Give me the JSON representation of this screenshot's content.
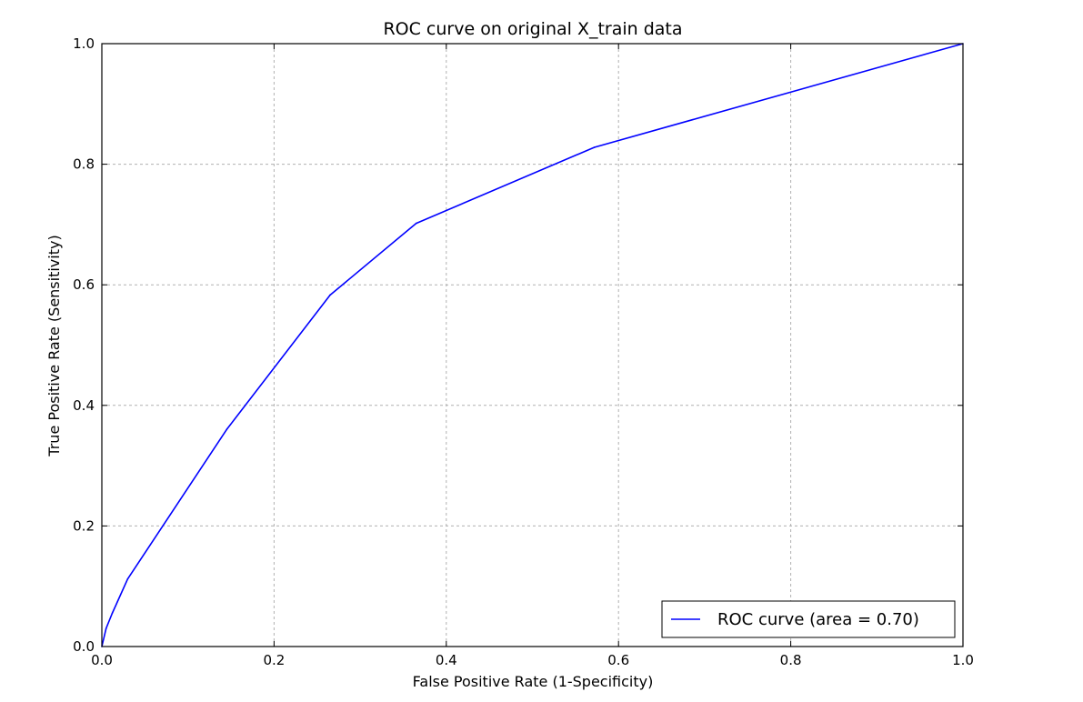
{
  "chart_data": {
    "type": "line",
    "title": "ROC curve on original X_train data",
    "xlabel": "False Positive Rate (1-Specificity)",
    "ylabel": "True Positive Rate (Sensitivity)",
    "xlim": [
      0.0,
      1.0
    ],
    "ylim": [
      0.0,
      1.0
    ],
    "xticks": [
      "0.0",
      "0.2",
      "0.4",
      "0.6",
      "0.8",
      "1.0"
    ],
    "yticks": [
      "0.0",
      "0.2",
      "0.4",
      "0.6",
      "0.8",
      "1.0"
    ],
    "grid": true,
    "legend_position": "lower-right",
    "series": [
      {
        "name": "ROC curve (area = 0.70)",
        "color": "#0000ff",
        "x": [
          0.0,
          0.005,
          0.012,
          0.03,
          0.145,
          0.265,
          0.365,
          0.572,
          1.0
        ],
        "y": [
          0.0,
          0.03,
          0.055,
          0.112,
          0.36,
          0.583,
          0.702,
          0.828,
          1.0
        ]
      }
    ]
  }
}
